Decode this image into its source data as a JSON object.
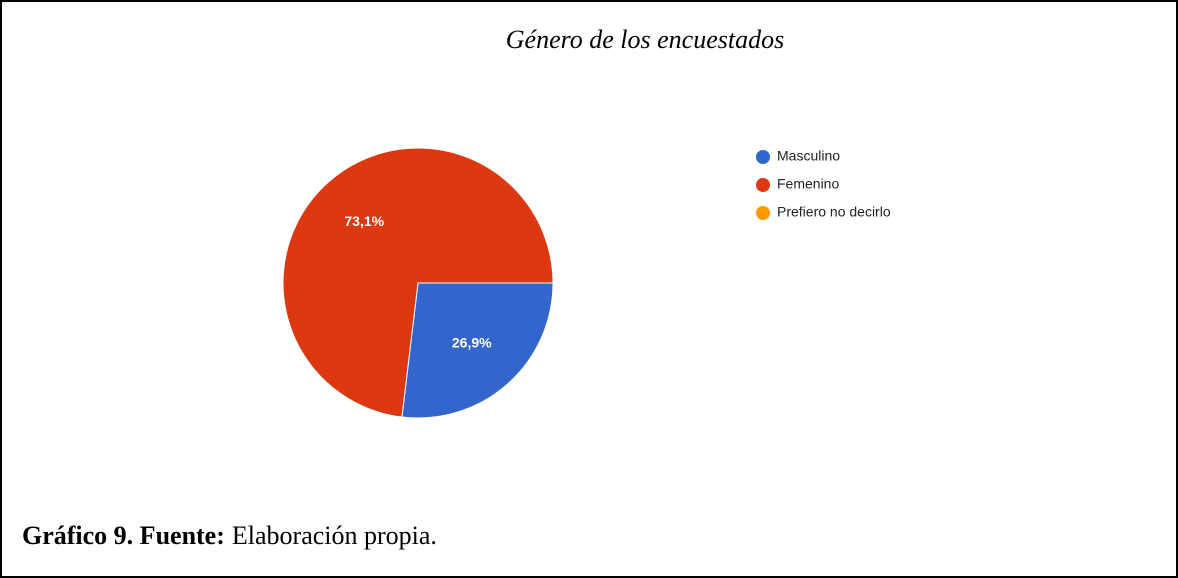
{
  "chart_data": {
    "type": "pie",
    "title": "Género de los encuestados",
    "categories": [
      "Masculino",
      "Femenino",
      "Prefiero no decirlo"
    ],
    "values": [
      26.9,
      73.1,
      0
    ],
    "value_labels": [
      "26,9%",
      "73,1%",
      null
    ],
    "colors": [
      "#3366cc",
      "#dc3912",
      "#ff9900"
    ],
    "legend": "right"
  },
  "caption": {
    "label": "Gráfico 9. Fuente:",
    "text": "Elaboración propia."
  }
}
